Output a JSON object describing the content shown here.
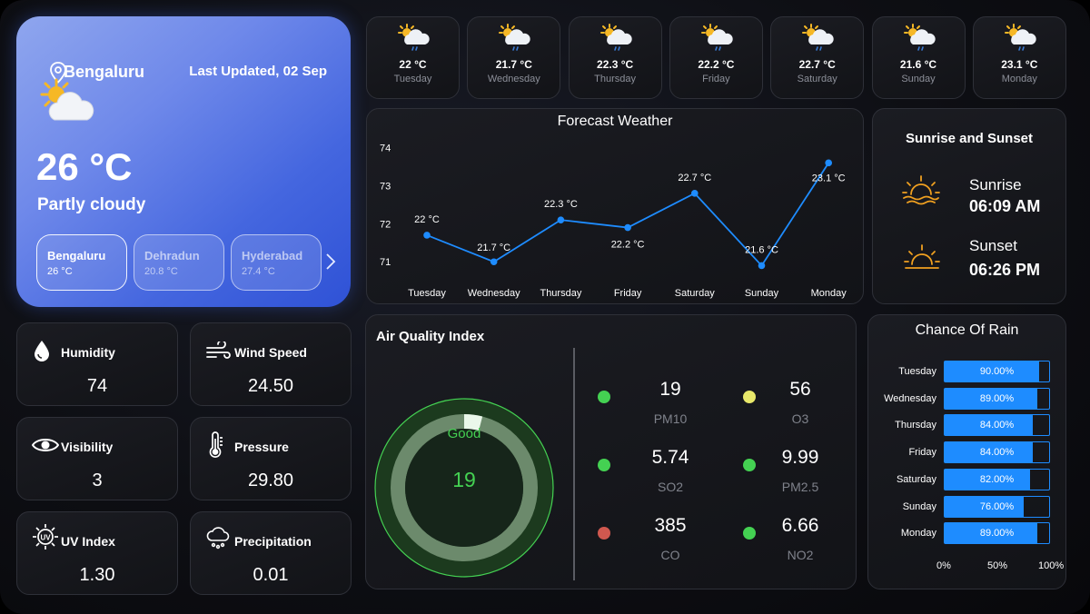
{
  "hero": {
    "city": "Bengaluru",
    "last_updated": "Last Updated, 02 Sep",
    "temperature": "26 °C",
    "condition": "Partly cloudy",
    "icon": "partly-cloudy-icon",
    "cities": [
      {
        "name": "Bengaluru",
        "temp": "26 °C",
        "active": true
      },
      {
        "name": "Dehradun",
        "temp": "20.8 °C",
        "active": false
      },
      {
        "name": "Hyderabad",
        "temp": "27.4 °C",
        "active": false
      }
    ]
  },
  "metrics": [
    {
      "label": "Humidity",
      "value": "74",
      "icon": "droplet-icon"
    },
    {
      "label": "Wind Speed",
      "value": "24.50",
      "icon": "wind-icon"
    },
    {
      "label": "Visibility",
      "value": "3",
      "icon": "eye-icon"
    },
    {
      "label": "Pressure",
      "value": "29.80",
      "icon": "thermometer-icon"
    },
    {
      "label": "UV Index",
      "value": "1.30",
      "icon": "uv-sun-icon"
    },
    {
      "label": "Precipitation",
      "value": "0.01",
      "icon": "rain-cloud-icon"
    }
  ],
  "forecast": [
    {
      "day": "Tuesday",
      "temp": "22 °C"
    },
    {
      "day": "Wednesday",
      "temp": "21.7 °C"
    },
    {
      "day": "Thursday",
      "temp": "22.3 °C"
    },
    {
      "day": "Friday",
      "temp": "22.2 °C"
    },
    {
      "day": "Saturday",
      "temp": "22.7 °C"
    },
    {
      "day": "Sunday",
      "temp": "21.6 °C"
    },
    {
      "day": "Monday",
      "temp": "23.1 °C"
    }
  ],
  "forecast_chart": {
    "title": "Forecast Weather",
    "line_color": "#1e8cff",
    "y_ticks": [
      "74",
      "73",
      "72",
      "71"
    ],
    "chart_data": {
      "type": "line",
      "categories": [
        "Tuesday",
        "Wednesday",
        "Thursday",
        "Friday",
        "Saturday",
        "Sunday",
        "Monday"
      ],
      "values": [
        71.7,
        71.0,
        72.1,
        71.9,
        72.8,
        70.9,
        73.6
      ],
      "data_labels": [
        "22 °C",
        "21.7 °C",
        "22.3 °C",
        "22.2 °C",
        "22.7 °C",
        "21.6 °C",
        "23.1 °C"
      ],
      "ylim": [
        70.6,
        74.3
      ],
      "grid": false
    }
  },
  "sun": {
    "title": "Sunrise and Sunset",
    "sunrise_label": "Sunrise",
    "sunrise_time": "06:09 AM",
    "sunset_label": "Sunset",
    "sunset_time": "06:26 PM",
    "icon_color": "#f0a020"
  },
  "aqi": {
    "title": "Air Quality Index",
    "status": "Good",
    "value": "19",
    "gauge_fraction": 0.04,
    "accent": "#44d152",
    "items": [
      {
        "value": "19",
        "key": "PM10",
        "color": "#44d152"
      },
      {
        "value": "56",
        "key": "O3",
        "color": "#e8e86a"
      },
      {
        "value": "5.74",
        "key": "SO2",
        "color": "#44d152"
      },
      {
        "value": "9.99",
        "key": "PM2.5",
        "color": "#44d152"
      },
      {
        "value": "385",
        "key": "CO",
        "color": "#d0584f"
      },
      {
        "value": "6.66",
        "key": "NO2",
        "color": "#44d152"
      }
    ]
  },
  "rain": {
    "title": "Chance Of Rain",
    "bar_color": "#1e8cff",
    "axis": [
      "0%",
      "50%",
      "100%"
    ],
    "chart_data": {
      "type": "bar",
      "orientation": "horizontal",
      "categories": [
        "Tuesday",
        "Wednesday",
        "Thursday",
        "Friday",
        "Saturday",
        "Sunday",
        "Monday"
      ],
      "values": [
        90,
        89,
        84,
        84,
        82,
        76,
        89
      ],
      "data_labels": [
        "90.00%",
        "89.00%",
        "84.00%",
        "84.00%",
        "82.00%",
        "76.00%",
        "89.00%"
      ],
      "xlim": [
        0,
        100
      ]
    }
  }
}
